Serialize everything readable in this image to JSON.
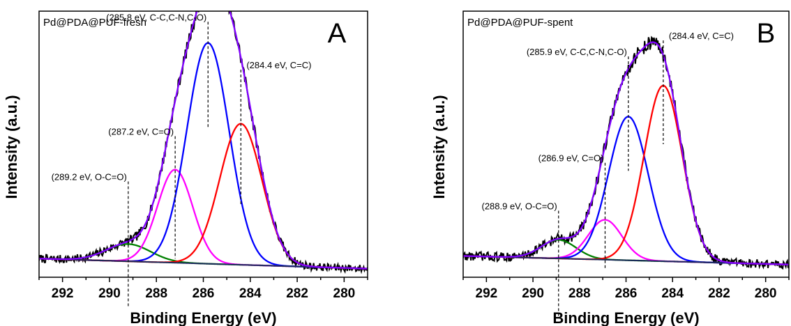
{
  "chart_data": [
    {
      "type": "line",
      "title": "Pd@PDA@PUF-fresh",
      "panel_label": "A",
      "xlabel": "Binding Energy (eV)",
      "ylabel": "Intensity (a.u.)",
      "xlim": [
        293,
        279
      ],
      "x_reversed": true,
      "xticks": [
        292,
        290,
        288,
        286,
        284,
        282,
        280
      ],
      "ylim": [
        0,
        1
      ],
      "grid": false,
      "background": {
        "x": [
          293,
          280
        ],
        "y": [
          0.07,
          0.035
        ]
      },
      "peaks": [
        {
          "name": "C=C",
          "center": 284.4,
          "height": 0.53,
          "sigma": 0.9,
          "color": "#ff0000"
        },
        {
          "name": "C-C,C-N,C-O",
          "center": 285.8,
          "height": 0.83,
          "sigma": 0.9,
          "color": "#0000ff"
        },
        {
          "name": "C=O",
          "center": 287.2,
          "height": 0.35,
          "sigma": 0.75,
          "color": "#ff00ff"
        },
        {
          "name": "O-C=O",
          "center": 289.2,
          "height": 0.065,
          "sigma": 0.95,
          "color": "#008000"
        }
      ],
      "envelope_color": "#8000ff",
      "raw_color": "#000000",
      "noise_amplitude": 0.012,
      "annotations": [
        {
          "text": "(285.8 eV, C-C,C-N,C-O)",
          "x": 285.8,
          "y_top": 0.96,
          "y_bottom": 0.56,
          "text_anchor_side": "left"
        },
        {
          "text": "(284.4 eV, C=C)",
          "x": 284.4,
          "y_top": 0.78,
          "y_bottom": 0.27,
          "text_anchor_side": "right"
        },
        {
          "text": "(287.2 eV, C=O)",
          "x": 287.2,
          "y_top": 0.53,
          "y_bottom": 0.07,
          "text_anchor_side": "left"
        },
        {
          "text": "(289.2 eV, O-C=O)",
          "x": 289.2,
          "y_top": 0.36,
          "y_bottom": -0.11,
          "text_anchor_side": "left"
        }
      ]
    },
    {
      "type": "line",
      "title": "Pd@PDA@PUF-spent",
      "panel_label": "B",
      "xlabel": "Binding Energy (eV)",
      "ylabel": "Intensity (a.u.)",
      "xlim": [
        293,
        279
      ],
      "x_reversed": true,
      "xticks": [
        292,
        290,
        288,
        286,
        284,
        282,
        280
      ],
      "ylim": [
        0,
        1
      ],
      "grid": false,
      "background": {
        "x": [
          293,
          280
        ],
        "y": [
          0.08,
          0.05
        ]
      },
      "peaks": [
        {
          "name": "C=C",
          "center": 284.4,
          "height": 0.66,
          "sigma": 0.82,
          "color": "#ff0000"
        },
        {
          "name": "C-C,C-N,C-O",
          "center": 285.9,
          "height": 0.54,
          "sigma": 0.85,
          "color": "#0000ff"
        },
        {
          "name": "C=O",
          "center": 286.9,
          "height": 0.15,
          "sigma": 0.72,
          "color": "#ff00ff"
        },
        {
          "name": "O-C=O",
          "center": 288.9,
          "height": 0.07,
          "sigma": 0.75,
          "color": "#008000"
        }
      ],
      "envelope_color": "#8000ff",
      "raw_color": "#000000",
      "noise_amplitude": 0.013,
      "annotations": [
        {
          "text": "(285.9 eV, C-C,C-N,C-O)",
          "x": 285.9,
          "y_top": 0.83,
          "y_bottom": 0.4,
          "text_anchor_side": "left"
        },
        {
          "text": "(284.4 eV, C=C)",
          "x": 284.4,
          "y_top": 0.89,
          "y_bottom": 0.5,
          "text_anchor_side": "right"
        },
        {
          "text": "(286.9 eV, C=O)",
          "x": 286.9,
          "y_top": 0.43,
          "y_bottom": 0.03,
          "text_anchor_side": "left"
        },
        {
          "text": "(288.9 eV, O-C=O)",
          "x": 288.9,
          "y_top": 0.25,
          "y_bottom": -0.15,
          "text_anchor_side": "left"
        }
      ]
    }
  ]
}
